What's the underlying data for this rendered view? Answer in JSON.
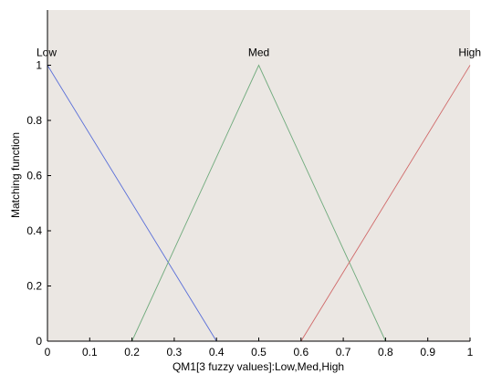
{
  "chart_data": {
    "type": "line",
    "title": "",
    "xlabel": "QM1[3 fuzzy values]:Low,Med,High",
    "ylabel": "Matching function",
    "xlim": [
      0,
      1
    ],
    "ylim": [
      0,
      1.2
    ],
    "xticks": [
      "0",
      "0.1",
      "0.2",
      "0.3",
      "0.4",
      "0.5",
      "0.6",
      "0.7",
      "0.8",
      "0.9",
      "1"
    ],
    "yticks": [
      "0",
      "0.2",
      "0.4",
      "0.6",
      "0.8",
      "1"
    ],
    "xtick_values": [
      0,
      0.1,
      0.2,
      0.3,
      0.4,
      0.5,
      0.6,
      0.7,
      0.8,
      0.9,
      1
    ],
    "ytick_values": [
      0,
      0.2,
      0.4,
      0.6,
      0.8,
      1
    ],
    "grid": false,
    "background_color": "#ebe7e3",
    "series": [
      {
        "name": "Low",
        "color": "#5a6fd8",
        "points": [
          [
            0,
            1
          ],
          [
            0.4,
            0
          ],
          [
            1,
            0
          ]
        ]
      },
      {
        "name": "Med",
        "color": "#6faa7c",
        "points": [
          [
            0,
            0
          ],
          [
            0.2,
            0
          ],
          [
            0.5,
            1
          ],
          [
            0.8,
            0
          ],
          [
            1,
            0
          ]
        ]
      },
      {
        "name": "High",
        "color": "#d06a6a",
        "points": [
          [
            0,
            0
          ],
          [
            0.6,
            0
          ],
          [
            1,
            1
          ]
        ]
      }
    ]
  }
}
